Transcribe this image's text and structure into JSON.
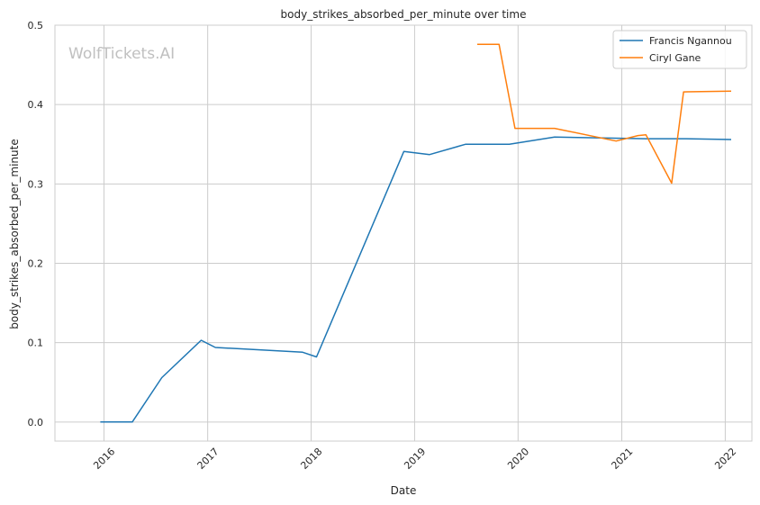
{
  "watermark": "WolfTickets.AI",
  "chart_data": {
    "type": "line",
    "title": "body_strikes_absorbed_per_minute over time",
    "xlabel": "Date",
    "ylabel": "body_strikes_absorbed_per_minute",
    "xlim": [
      "2015-07-12",
      "2022-04-05"
    ],
    "ylim": [
      -0.024,
      0.5
    ],
    "x_ticks": [
      "2016-01-01",
      "2017-01-01",
      "2018-01-01",
      "2019-01-01",
      "2020-01-01",
      "2021-01-01",
      "2022-01-01"
    ],
    "x_tick_labels": [
      "2016",
      "2017",
      "2018",
      "2019",
      "2020",
      "2021",
      "2022"
    ],
    "y_ticks": [
      0.0,
      0.1,
      0.2,
      0.3,
      0.4,
      0.5
    ],
    "y_tick_labels": [
      "0.0",
      "0.1",
      "0.2",
      "0.3",
      "0.4",
      "0.5"
    ],
    "grid": true,
    "legend_position": "top-right",
    "series": [
      {
        "name": "Francis Ngannou",
        "color": "#1f77b4",
        "points": [
          {
            "x": "2015-12-19",
            "y": 0.0
          },
          {
            "x": "2016-04-10",
            "y": 0.0
          },
          {
            "x": "2016-07-23",
            "y": 0.056
          },
          {
            "x": "2016-12-09",
            "y": 0.103
          },
          {
            "x": "2017-01-28",
            "y": 0.094
          },
          {
            "x": "2017-12-02",
            "y": 0.088
          },
          {
            "x": "2018-01-20",
            "y": 0.082
          },
          {
            "x": "2018-11-24",
            "y": 0.341
          },
          {
            "x": "2019-02-23",
            "y": 0.337
          },
          {
            "x": "2019-06-29",
            "y": 0.35
          },
          {
            "x": "2019-12-01",
            "y": 0.35
          },
          {
            "x": "2020-05-09",
            "y": 0.359
          },
          {
            "x": "2021-03-27",
            "y": 0.357
          },
          {
            "x": "2021-08-10",
            "y": 0.357
          },
          {
            "x": "2022-01-22",
            "y": 0.356
          }
        ]
      },
      {
        "name": "Ciryl Gane",
        "color": "#ff7f0e",
        "points": [
          {
            "x": "2019-08-10",
            "y": 0.476
          },
          {
            "x": "2019-10-26",
            "y": 0.476
          },
          {
            "x": "2019-12-21",
            "y": 0.37
          },
          {
            "x": "2020-05-09",
            "y": 0.37
          },
          {
            "x": "2020-12-12",
            "y": 0.354
          },
          {
            "x": "2021-02-27",
            "y": 0.361
          },
          {
            "x": "2021-03-27",
            "y": 0.362
          },
          {
            "x": "2021-06-26",
            "y": 0.301
          },
          {
            "x": "2021-08-07",
            "y": 0.416
          },
          {
            "x": "2022-01-22",
            "y": 0.417
          }
        ]
      }
    ]
  }
}
